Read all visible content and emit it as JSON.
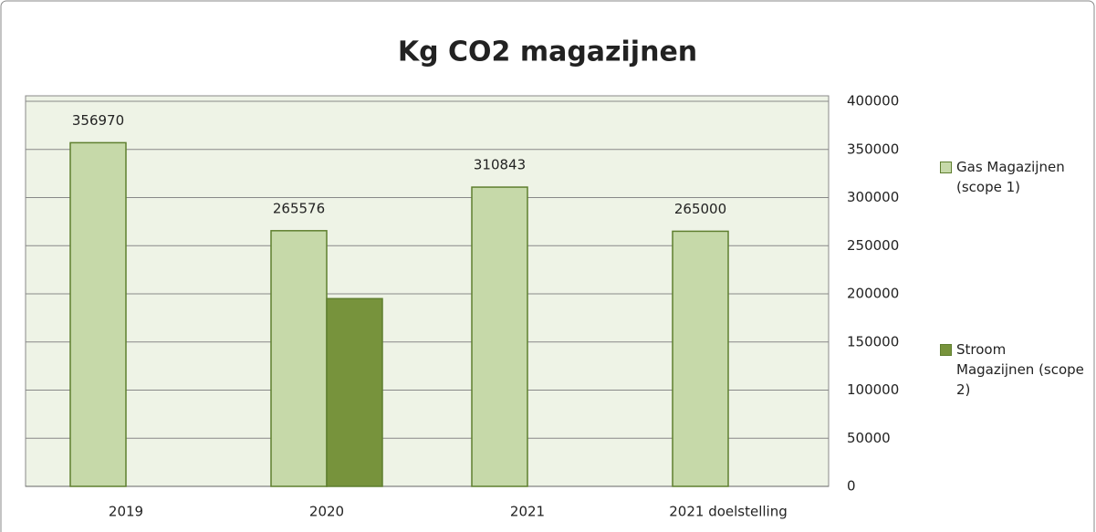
{
  "chart_data": {
    "type": "bar",
    "title": "Kg CO2 magazijnen",
    "categories": [
      "2019",
      "2020",
      "2021",
      "2021 doelstelling"
    ],
    "series": [
      {
        "name": "Gas Magazijnen (scope 1)",
        "color": "#c6d9a9",
        "show_values": true,
        "values": [
          356970,
          265576,
          310843,
          265000
        ]
      },
      {
        "name": "Stroom Magazijnen (scope 2)",
        "color": "#77933c",
        "show_values": false,
        "values": [
          null,
          195000,
          null,
          null
        ]
      }
    ],
    "ylim": [
      0,
      400000
    ],
    "yticks": [
      0,
      50000,
      100000,
      150000,
      200000,
      250000,
      300000,
      350000,
      400000
    ],
    "grid": true,
    "y_axis_side": "right",
    "legend": "right"
  }
}
